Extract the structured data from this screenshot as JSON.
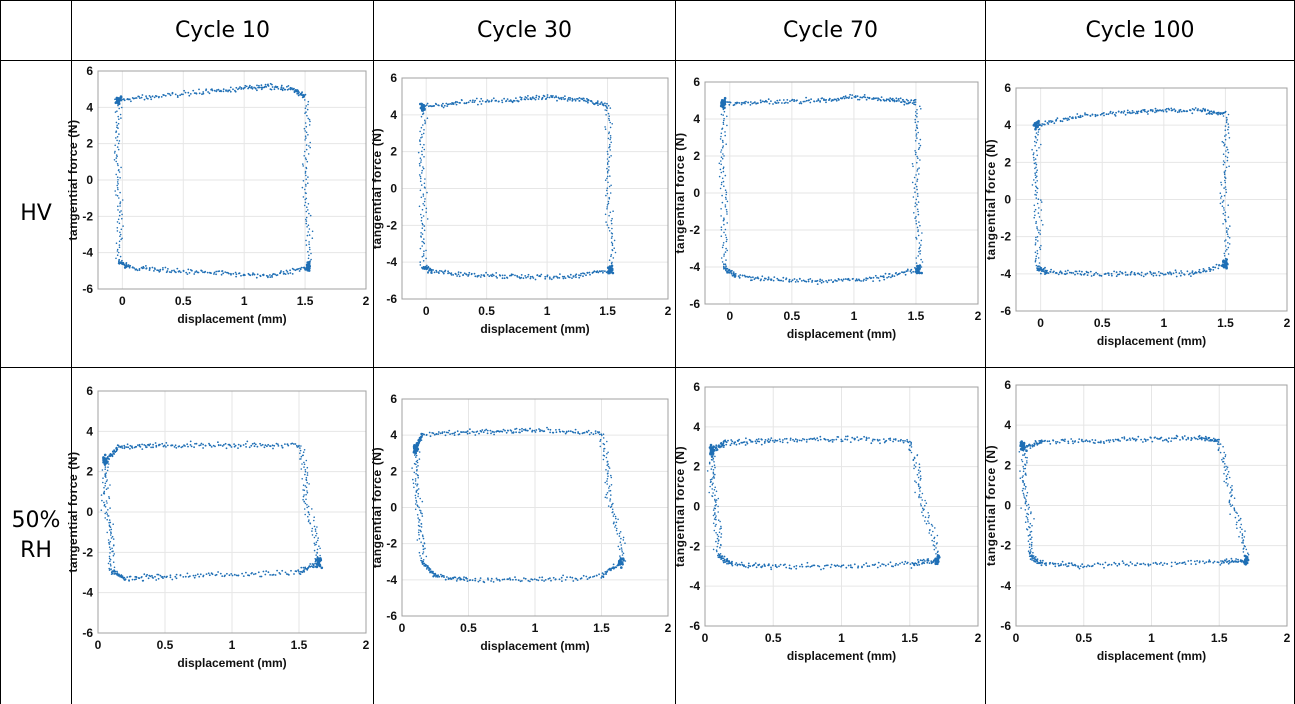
{
  "table": {
    "columns": [
      "Cycle 10",
      "Cycle 30",
      "Cycle 70",
      "Cycle 100"
    ],
    "rows": [
      {
        "label_lines": [
          "HV"
        ]
      },
      {
        "label_lines": [
          "50%",
          "RH"
        ]
      }
    ]
  },
  "colors": {
    "series": "#1f6fb5",
    "grid": "#e6e6e6",
    "axis": "#a0a0a0"
  },
  "chart_data": [
    {
      "type": "scatter",
      "row": "HV",
      "column": "Cycle 10",
      "xlabel": "displacement (mm)",
      "ylabel": "tangential force (N)",
      "xlim": [
        -0.2,
        2
      ],
      "ylim": [
        -6,
        6
      ],
      "xticks": [
        "0",
        "0.5",
        "1",
        "1.5",
        "2"
      ],
      "yticks": [
        "6",
        "4",
        "2",
        "0",
        "-2",
        "-4",
        "-6"
      ],
      "grid": true,
      "loop": {
        "x_min": -0.03,
        "x_max": 1.52,
        "top": [
          [
            -0.03,
            4.4
          ],
          [
            0.3,
            4.6
          ],
          [
            0.7,
            4.9
          ],
          [
            1.0,
            5.0
          ],
          [
            1.2,
            5.2
          ],
          [
            1.4,
            5.0
          ],
          [
            1.5,
            4.6
          ]
        ],
        "bottom": [
          [
            1.52,
            -4.8
          ],
          [
            1.2,
            -5.3
          ],
          [
            0.8,
            -5.1
          ],
          [
            0.4,
            -5.0
          ],
          [
            0.05,
            -4.8
          ],
          [
            -0.03,
            -4.5
          ]
        ]
      }
    },
    {
      "type": "scatter",
      "row": "HV",
      "column": "Cycle 30",
      "xlabel": "displacement (mm)",
      "ylabel": "tangential force (N)",
      "xlim": [
        -0.2,
        2
      ],
      "ylim": [
        -6,
        6
      ],
      "xticks": [
        "0",
        "0.5",
        "1",
        "1.5",
        "2"
      ],
      "yticks": [
        "6",
        "4",
        "2",
        "0",
        "-2",
        "-4",
        "-6"
      ],
      "grid": true,
      "loop": {
        "x_min": -0.03,
        "x_max": 1.53,
        "top": [
          [
            -0.03,
            4.4
          ],
          [
            0.3,
            4.7
          ],
          [
            0.7,
            4.8
          ],
          [
            1.0,
            5.0
          ],
          [
            1.3,
            4.8
          ],
          [
            1.5,
            4.5
          ]
        ],
        "bottom": [
          [
            1.53,
            -4.4
          ],
          [
            1.2,
            -4.8
          ],
          [
            0.8,
            -4.8
          ],
          [
            0.4,
            -4.7
          ],
          [
            0.05,
            -4.5
          ],
          [
            -0.03,
            -4.3
          ]
        ]
      }
    },
    {
      "type": "scatter",
      "row": "HV",
      "column": "Cycle 70",
      "xlabel": "displacement (mm)",
      "ylabel": "tangential force (N)",
      "xlim": [
        -0.2,
        2
      ],
      "ylim": [
        -6,
        6
      ],
      "xticks": [
        "0",
        "0.5",
        "1",
        "1.5",
        "2"
      ],
      "yticks": [
        "6",
        "4",
        "2",
        "0",
        "-2",
        "-4",
        "-6"
      ],
      "grid": true,
      "loop": {
        "x_min": -0.05,
        "x_max": 1.52,
        "top": [
          [
            -0.05,
            4.8
          ],
          [
            0.3,
            4.9
          ],
          [
            0.7,
            5.0
          ],
          [
            1.0,
            5.2
          ],
          [
            1.3,
            5.0
          ],
          [
            1.5,
            4.9
          ]
        ],
        "bottom": [
          [
            1.52,
            -4.1
          ],
          [
            1.2,
            -4.6
          ],
          [
            0.8,
            -4.8
          ],
          [
            0.4,
            -4.7
          ],
          [
            0.05,
            -4.5
          ],
          [
            -0.05,
            -4.0
          ]
        ]
      }
    },
    {
      "type": "scatter",
      "row": "HV",
      "column": "Cycle 100",
      "xlabel": "displacement (mm)",
      "ylabel": "tangential force (N)",
      "xlim": [
        -0.2,
        2
      ],
      "ylim": [
        -6,
        6
      ],
      "xticks": [
        "0",
        "0.5",
        "1",
        "1.5",
        "2"
      ],
      "yticks": [
        "6",
        "4",
        "2",
        "0",
        "-2",
        "-4",
        "-6"
      ],
      "grid": true,
      "loop": {
        "x_min": -0.03,
        "x_max": 1.5,
        "top": [
          [
            -0.03,
            4.0
          ],
          [
            0.3,
            4.5
          ],
          [
            0.7,
            4.7
          ],
          [
            1.0,
            4.8
          ],
          [
            1.3,
            4.8
          ],
          [
            1.5,
            4.6
          ]
        ],
        "bottom": [
          [
            1.5,
            -3.5
          ],
          [
            1.2,
            -4.0
          ],
          [
            0.8,
            -4.0
          ],
          [
            0.4,
            -4.0
          ],
          [
            0.05,
            -3.9
          ],
          [
            -0.03,
            -3.7
          ]
        ]
      }
    },
    {
      "type": "scatter",
      "row": "50% RH",
      "column": "Cycle 10",
      "xlabel": "displacement (mm)",
      "ylabel": "tangential force (N)",
      "xlim": [
        0,
        2
      ],
      "ylim": [
        -6,
        6
      ],
      "xticks": [
        "0",
        "0.5",
        "1",
        "1.5",
        "2"
      ],
      "yticks": [
        "6",
        "4",
        "2",
        "0",
        "-2",
        "-4",
        "-6"
      ],
      "grid": true,
      "loop": {
        "x_min": 0.05,
        "x_max": 1.65,
        "top": [
          [
            0.05,
            2.5
          ],
          [
            0.15,
            3.2
          ],
          [
            0.5,
            3.3
          ],
          [
            1.0,
            3.3
          ],
          [
            1.5,
            3.3
          ]
        ],
        "bottom": [
          [
            1.65,
            -2.5
          ],
          [
            1.5,
            -3.0
          ],
          [
            1.0,
            -3.1
          ],
          [
            0.5,
            -3.2
          ],
          [
            0.2,
            -3.3
          ],
          [
            0.1,
            -2.9
          ]
        ]
      }
    },
    {
      "type": "scatter",
      "row": "50% RH",
      "column": "Cycle 30",
      "xlabel": "displacement (mm)",
      "ylabel": "tangential force (N)",
      "xlim": [
        0,
        2
      ],
      "ylim": [
        -6,
        6
      ],
      "xticks": [
        "0",
        "0.5",
        "1",
        "1.5",
        "2"
      ],
      "yticks": [
        "6",
        "4",
        "2",
        "0",
        "-2",
        "-4",
        "-6"
      ],
      "grid": true,
      "loop": {
        "x_min": 0.1,
        "x_max": 1.65,
        "top": [
          [
            0.1,
            3.2
          ],
          [
            0.15,
            4.0
          ],
          [
            0.6,
            4.2
          ],
          [
            1.0,
            4.3
          ],
          [
            1.5,
            4.1
          ]
        ],
        "bottom": [
          [
            1.65,
            -3.0
          ],
          [
            1.5,
            -3.8
          ],
          [
            1.0,
            -4.0
          ],
          [
            0.5,
            -4.0
          ],
          [
            0.25,
            -3.8
          ],
          [
            0.15,
            -3.0
          ]
        ]
      }
    },
    {
      "type": "scatter",
      "row": "50% RH",
      "column": "Cycle 70",
      "xlabel": "displacement (mm)",
      "ylabel": "tangential force (N)",
      "xlim": [
        0,
        2
      ],
      "ylim": [
        -6,
        6
      ],
      "xticks": [
        "0",
        "0.5",
        "1",
        "1.5",
        "2"
      ],
      "yticks": [
        "6",
        "4",
        "2",
        "0",
        "-2",
        "-4",
        "-6"
      ],
      "grid": true,
      "loop": {
        "x_min": 0.05,
        "x_max": 1.7,
        "top": [
          [
            0.05,
            2.8
          ],
          [
            0.15,
            3.2
          ],
          [
            0.5,
            3.3
          ],
          [
            1.0,
            3.4
          ],
          [
            1.5,
            3.3
          ]
        ],
        "bottom": [
          [
            1.7,
            -2.7
          ],
          [
            1.5,
            -2.9
          ],
          [
            1.0,
            -3.0
          ],
          [
            0.5,
            -3.0
          ],
          [
            0.2,
            -2.9
          ],
          [
            0.1,
            -2.5
          ]
        ]
      }
    },
    {
      "type": "scatter",
      "row": "50% RH",
      "column": "Cycle 100",
      "xlabel": "displacement (mm)",
      "ylabel": "tangential force (N)",
      "xlim": [
        0,
        2
      ],
      "ylim": [
        -6,
        6
      ],
      "xticks": [
        "0",
        "0.5",
        "1",
        "1.5",
        "2"
      ],
      "yticks": [
        "6",
        "4",
        "2",
        "0",
        "-2",
        "-4",
        "-6"
      ],
      "grid": true,
      "loop": {
        "x_min": 0.05,
        "x_max": 1.7,
        "top": [
          [
            0.05,
            2.9
          ],
          [
            0.2,
            3.2
          ],
          [
            0.6,
            3.2
          ],
          [
            1.0,
            3.3
          ],
          [
            1.35,
            3.4
          ],
          [
            1.5,
            3.2
          ]
        ],
        "bottom": [
          [
            1.7,
            -2.7
          ],
          [
            1.5,
            -2.8
          ],
          [
            1.0,
            -2.9
          ],
          [
            0.5,
            -3.0
          ],
          [
            0.2,
            -2.9
          ],
          [
            0.1,
            -2.5
          ]
        ]
      }
    }
  ]
}
